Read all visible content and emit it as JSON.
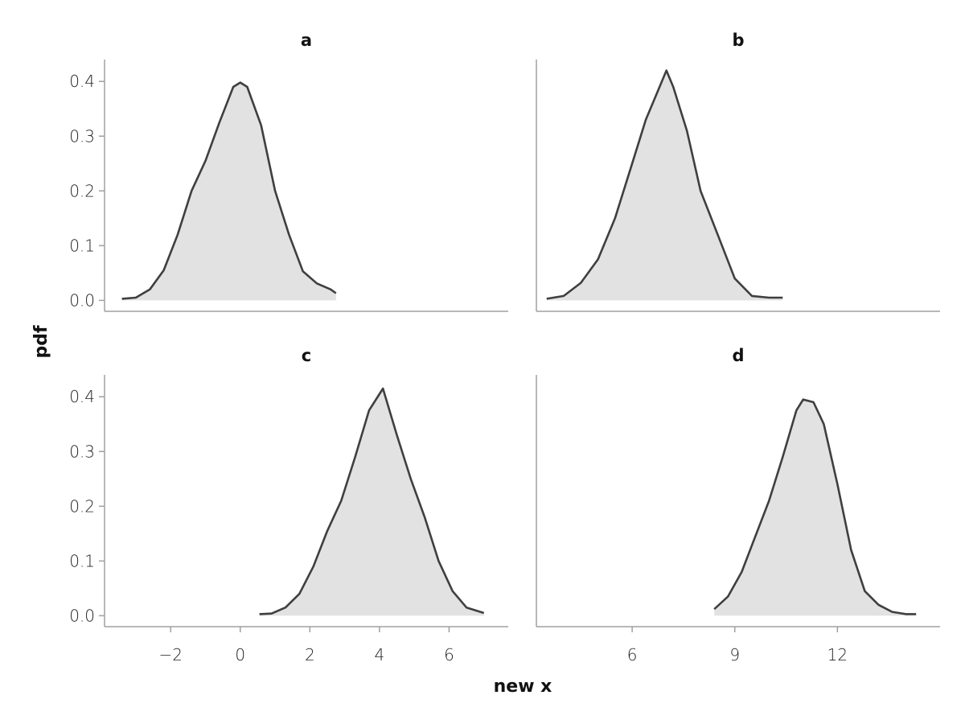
{
  "chart_data": {
    "type": "area",
    "xlabel": "new x",
    "ylabel": "pdf",
    "y_ticks": [
      "0.0",
      "0.1",
      "0.2",
      "0.3",
      "0.4"
    ],
    "grid": false,
    "panels": [
      {
        "title": "a",
        "xlim": [
          -3.9,
          7.7
        ],
        "ylim": [
          -0.02,
          0.44
        ],
        "x_ticks": [],
        "x": [
          -3.4,
          -3.0,
          -2.6,
          -2.2,
          -1.8,
          -1.4,
          -1.0,
          -0.6,
          -0.2,
          0.0,
          0.2,
          0.6,
          1.0,
          1.4,
          1.8,
          2.2,
          2.6,
          2.75
        ],
        "y": [
          0.003,
          0.005,
          0.02,
          0.055,
          0.12,
          0.2,
          0.255,
          0.325,
          0.39,
          0.398,
          0.39,
          0.32,
          0.2,
          0.12,
          0.053,
          0.031,
          0.02,
          0.013
        ]
      },
      {
        "title": "b",
        "xlim": [
          3.2,
          15.0
        ],
        "ylim": [
          -0.02,
          0.44
        ],
        "x_ticks": [],
        "x": [
          3.5,
          4.0,
          4.5,
          5.0,
          5.5,
          6.0,
          6.4,
          6.8,
          7.0,
          7.2,
          7.6,
          8.0,
          8.5,
          9.0,
          9.5,
          10.0,
          10.4
        ],
        "y": [
          0.003,
          0.008,
          0.032,
          0.075,
          0.15,
          0.25,
          0.33,
          0.39,
          0.42,
          0.39,
          0.31,
          0.2,
          0.12,
          0.04,
          0.008,
          0.005,
          0.005
        ]
      },
      {
        "title": "c",
        "xlim": [
          -3.9,
          7.7
        ],
        "ylim": [
          -0.02,
          0.44
        ],
        "x_ticks": [
          "-2",
          "0",
          "2",
          "4",
          "6"
        ],
        "x_tick_values": [
          -2,
          0,
          2,
          4,
          6
        ],
        "x": [
          0.55,
          0.9,
          1.3,
          1.7,
          2.1,
          2.5,
          2.9,
          3.3,
          3.7,
          4.1,
          4.5,
          4.9,
          5.3,
          5.7,
          6.1,
          6.5,
          7.0
        ],
        "y": [
          0.003,
          0.004,
          0.015,
          0.04,
          0.09,
          0.155,
          0.21,
          0.29,
          0.375,
          0.415,
          0.33,
          0.25,
          0.18,
          0.1,
          0.045,
          0.015,
          0.005
        ]
      },
      {
        "title": "d",
        "xlim": [
          3.2,
          15.0
        ],
        "ylim": [
          -0.02,
          0.44
        ],
        "x_ticks": [
          "6",
          "9",
          "12"
        ],
        "x_tick_values": [
          6,
          9,
          12
        ],
        "x": [
          8.4,
          8.8,
          9.2,
          9.6,
          10.0,
          10.4,
          10.8,
          11.0,
          11.3,
          11.6,
          12.0,
          12.4,
          12.8,
          13.2,
          13.6,
          14.0,
          14.3
        ],
        "y": [
          0.012,
          0.035,
          0.08,
          0.145,
          0.21,
          0.29,
          0.375,
          0.395,
          0.39,
          0.35,
          0.24,
          0.12,
          0.045,
          0.02,
          0.007,
          0.003,
          0.003
        ]
      }
    ]
  }
}
